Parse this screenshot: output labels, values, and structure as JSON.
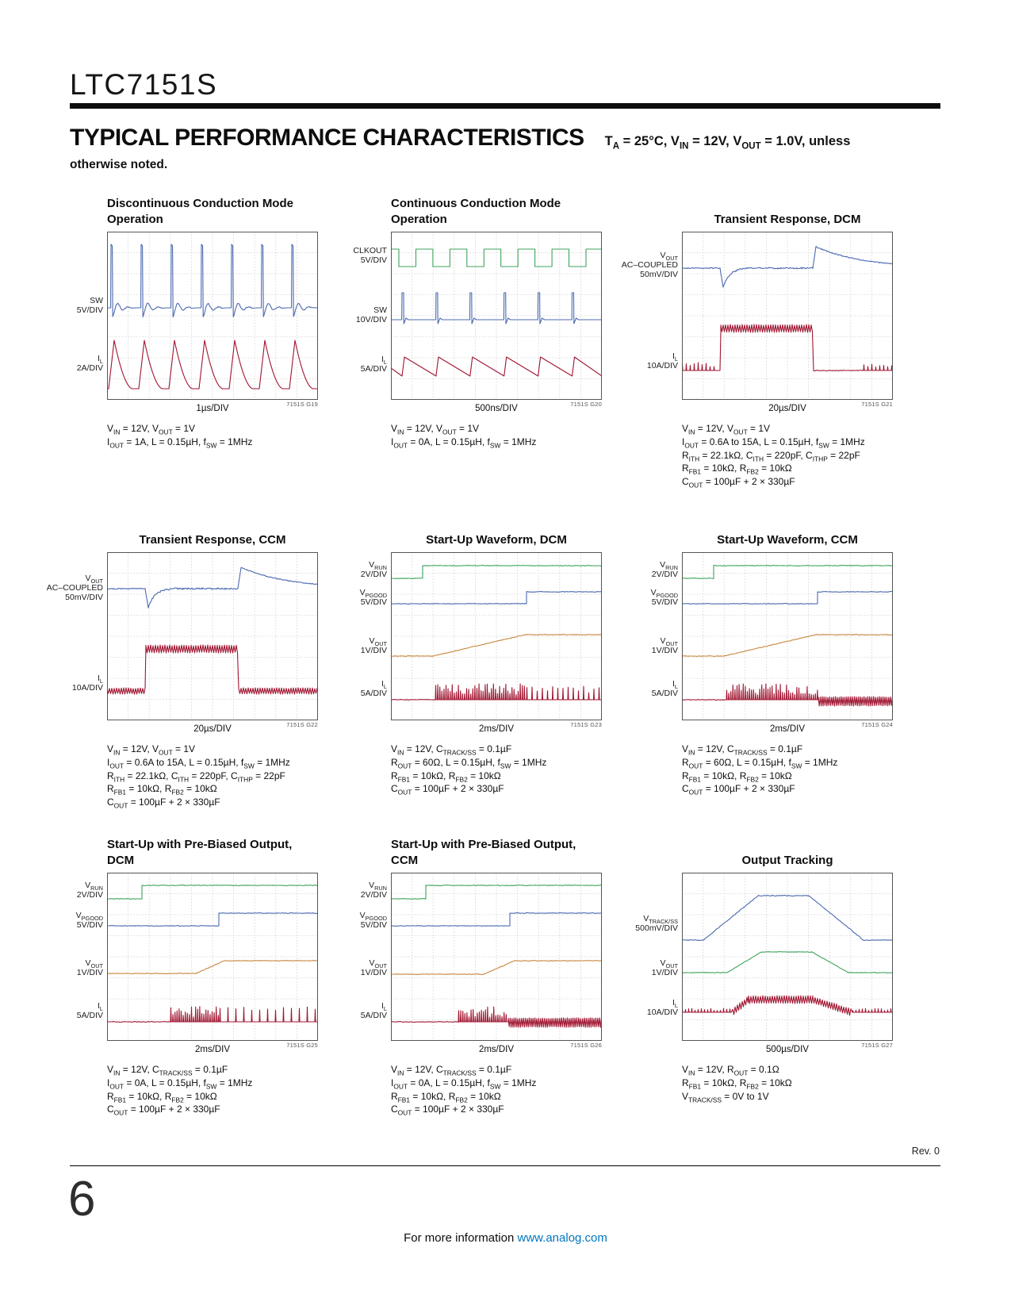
{
  "page": {
    "part_number": "LTC7151S",
    "section_title": "TYPICAL PERFORMANCE CHARACTERISTICS",
    "conditions_line1": "T~A~ = 25°C, V~IN~ = 12V, V~OUT~ = 1.0V, unless",
    "conditions_line2": "otherwise noted.",
    "rev": "Rev. 0",
    "page_number": "6",
    "footer_text": "For more information ",
    "footer_link": "www.analog.com"
  },
  "colors": {
    "blue": "#4b69b1",
    "red": "#a01531",
    "green": "#3fa35c",
    "orange": "#c8873d",
    "grid": "#cfcfcf",
    "frame": "#555555"
  },
  "panels": [
    {
      "id": "g19",
      "title_lines": [
        "Discontinuous Conduction Mode",
        "Operation"
      ],
      "tag": "7151S G19",
      "time_per_div": "1µs/DIV",
      "labels": [
        {
          "lines": [
            "SW",
            "5V/DIV"
          ]
        },
        {
          "lines": [
            "I~L~",
            "2A/DIV"
          ]
        }
      ],
      "signals": [
        {
          "name": "SW",
          "scale": "5V/DIV",
          "color": "blue",
          "shape": "switch-node pulses with DCM ringing"
        },
        {
          "name": "IL",
          "scale": "2A/DIV",
          "color": "red",
          "shape": "discontinuous triangular inductor current"
        }
      ],
      "notes": [
        "V~IN~ = 12V, V~OUT~ = 1V",
        "I~OUT~ = 1A, L = 0.15µH, f~SW~ = 1MHz"
      ]
    },
    {
      "id": "g20",
      "title_lines": [
        "Continuous Conduction Mode",
        "Operation"
      ],
      "tag": "7151S G20",
      "time_per_div": "500ns/DIV",
      "labels": [
        {
          "lines": [
            "CLKOUT",
            "5V/DIV"
          ]
        },
        {
          "lines": [
            "SW",
            "10V/DIV"
          ]
        },
        {
          "lines": [
            "I~L~",
            "5A/DIV"
          ]
        }
      ],
      "signals": [
        {
          "name": "CLKOUT",
          "scale": "5V/DIV",
          "color": "green",
          "shape": "square wave"
        },
        {
          "name": "SW",
          "scale": "10V/DIV",
          "color": "blue",
          "shape": "narrow switch-node pulses"
        },
        {
          "name": "IL",
          "scale": "5A/DIV",
          "color": "red",
          "shape": "continuous triangular ripple"
        }
      ],
      "notes": [
        "V~IN~ = 12V, V~OUT~ = 1V",
        "I~OUT~ = 0A, L = 0.15µH, f~SW~ = 1MHz"
      ]
    },
    {
      "id": "g21",
      "title_lines": [
        "Transient Response, DCM"
      ],
      "tag": "7151S G21",
      "time_per_div": "20µs/DIV",
      "labels": [
        {
          "lines": [
            "V~OUT~",
            "AC–COUPLED",
            "50mV/DIV"
          ]
        },
        {
          "lines": [
            "I~L~",
            "10A/DIV"
          ]
        }
      ],
      "signals": [
        {
          "name": "VOUT",
          "scale": "50mV/DIV AC-coupled",
          "color": "blue",
          "shape": "undershoot at load step, overshoot at release"
        },
        {
          "name": "IL",
          "scale": "10A/DIV",
          "color": "red",
          "shape": "0.6A DCM bursts stepping to 15A band"
        }
      ],
      "notes": [
        "V~IN~ = 12V, V~OUT~ = 1V",
        "I~OUT~ = 0.6A to 15A, L = 0.15µH, f~SW~ = 1MHz",
        "R~ITH~ = 22.1kΩ, C~ITH~ = 220pF, C~ITHP~ = 22pF",
        "R~FB1~ = 10kΩ, R~FB2~ = 10kΩ",
        "C~OUT~ = 100µF + 2 × 330µF"
      ]
    },
    {
      "id": "g22",
      "title_lines": [
        "Transient Response, CCM"
      ],
      "tag": "7151S G22",
      "time_per_div": "20µs/DIV",
      "labels": [
        {
          "lines": [
            "V~OUT~",
            "AC–COUPLED",
            "50mV/DIV"
          ]
        },
        {
          "lines": [
            "I~L~",
            "10A/DIV"
          ]
        }
      ],
      "signals": [
        {
          "name": "VOUT",
          "scale": "50mV/DIV AC-coupled",
          "color": "blue",
          "shape": "undershoot at load step, overshoot at release"
        },
        {
          "name": "IL",
          "scale": "10A/DIV",
          "color": "red",
          "shape": "continuous ripple band stepping 0.6A to 15A"
        }
      ],
      "notes": [
        "V~IN~ = 12V, V~OUT~ = 1V",
        "I~OUT~ = 0.6A to 15A, L = 0.15µH, f~SW~ = 1MHz",
        "R~ITH~ = 22.1kΩ, C~ITH~ = 220pF, C~ITHP~ = 22pF",
        "R~FB1~ = 10kΩ, R~FB2~ = 10kΩ",
        "C~OUT~ = 100µF + 2 × 330µF"
      ]
    },
    {
      "id": "g23",
      "title_lines": [
        "Start-Up Waveform, DCM"
      ],
      "tag": "7151S G23",
      "time_per_div": "2ms/DIV",
      "labels": [
        {
          "lines": [
            "V~RUN~",
            "2V/DIV"
          ]
        },
        {
          "lines": [
            "V~PGOOD~",
            "5V/DIV"
          ]
        },
        {
          "lines": [
            "V~OUT~",
            "1V/DIV"
          ]
        },
        {
          "lines": [
            "I~L~",
            "5A/DIV"
          ]
        }
      ],
      "signals": [
        {
          "name": "VRUN",
          "scale": "2V/DIV",
          "color": "green",
          "shape": "step high at enable"
        },
        {
          "name": "VPGOOD",
          "scale": "5V/DIV",
          "color": "blue",
          "shape": "steps high after regulation"
        },
        {
          "name": "VOUT",
          "scale": "1V/DIV",
          "color": "orange",
          "shape": "soft-start ramp to 1V"
        },
        {
          "name": "IL",
          "scale": "5A/DIV",
          "color": "red",
          "shape": "DCM current spikes during and after ramp"
        }
      ],
      "notes": [
        "V~IN~ = 12V, C~TRACK/SS~ = 0.1µF",
        "R~OUT~ = 60Ω, L = 0.15µH, f~SW~ = 1MHz",
        "R~FB1~ = 10kΩ, R~FB2~ = 10kΩ",
        "C~OUT~ = 100µF + 2 × 330µF"
      ]
    },
    {
      "id": "g24",
      "title_lines": [
        "Start-Up Waveform, CCM"
      ],
      "tag": "7151S G24",
      "time_per_div": "2ms/DIV",
      "labels": [
        {
          "lines": [
            "V~RUN~",
            "2V/DIV"
          ]
        },
        {
          "lines": [
            "V~PGOOD~",
            "5V/DIV"
          ]
        },
        {
          "lines": [
            "V~OUT~",
            "1V/DIV"
          ]
        },
        {
          "lines": [
            "I~L~",
            "5A/DIV"
          ]
        }
      ],
      "signals": [
        {
          "name": "VRUN",
          "scale": "2V/DIV",
          "color": "green",
          "shape": "step high at enable"
        },
        {
          "name": "VPGOOD",
          "scale": "5V/DIV",
          "color": "blue",
          "shape": "steps high after regulation"
        },
        {
          "name": "VOUT",
          "scale": "1V/DIV",
          "color": "orange",
          "shape": "soft-start ramp to 1V"
        },
        {
          "name": "IL",
          "scale": "5A/DIV",
          "color": "red",
          "shape": "spikes during ramp, continuous ripple band after"
        }
      ],
      "notes": [
        "V~IN~ = 12V, C~TRACK/SS~ = 0.1µF",
        "R~OUT~ = 60Ω, L = 0.15µH, f~SW~ = 1MHz",
        "R~FB1~ = 10kΩ, R~FB2~ = 10kΩ",
        "C~OUT~ = 100µF + 2 × 330µF"
      ]
    },
    {
      "id": "g25",
      "title_lines": [
        "Start-Up with Pre-Biased Output,",
        "DCM"
      ],
      "tag": "7151S G25",
      "time_per_div": "2ms/DIV",
      "labels": [
        {
          "lines": [
            "V~RUN~",
            "2V/DIV"
          ]
        },
        {
          "lines": [
            "V~PGOOD~",
            "5V/DIV"
          ]
        },
        {
          "lines": [
            "V~OUT~",
            "1V/DIV"
          ]
        },
        {
          "lines": [
            "I~L~",
            "5A/DIV"
          ]
        }
      ],
      "signals": [
        {
          "name": "VRUN",
          "scale": "2V/DIV",
          "color": "green",
          "shape": "step high at enable"
        },
        {
          "name": "VPGOOD",
          "scale": "5V/DIV",
          "color": "blue",
          "shape": "steps high after regulation"
        },
        {
          "name": "VOUT",
          "scale": "1V/DIV",
          "color": "orange",
          "shape": "pre-biased level then ramp to 1V"
        },
        {
          "name": "IL",
          "scale": "5A/DIV",
          "color": "red",
          "shape": "no current until SS catches up, then DCM spikes"
        }
      ],
      "notes": [
        "V~IN~ = 12V, C~TRACK/SS~ = 0.1µF",
        "I~OUT~ = 0A, L = 0.15µH, f~SW~ = 1MHz",
        "R~FB1~ = 10kΩ, R~FB2~ = 10kΩ",
        "C~OUT~ = 100µF + 2 × 330µF"
      ]
    },
    {
      "id": "g26",
      "title_lines": [
        "Start-Up with Pre-Biased Output,",
        "CCM"
      ],
      "tag": "7151S G26",
      "time_per_div": "2ms/DIV",
      "labels": [
        {
          "lines": [
            "V~RUN~",
            "2V/DIV"
          ]
        },
        {
          "lines": [
            "V~PGOOD~",
            "5V/DIV"
          ]
        },
        {
          "lines": [
            "V~OUT~",
            "1V/DIV"
          ]
        },
        {
          "lines": [
            "I~L~",
            "5A/DIV"
          ]
        }
      ],
      "signals": [
        {
          "name": "VRUN",
          "scale": "2V/DIV",
          "color": "green",
          "shape": "step high at enable"
        },
        {
          "name": "VPGOOD",
          "scale": "5V/DIV",
          "color": "blue",
          "shape": "steps high after regulation"
        },
        {
          "name": "VOUT",
          "scale": "1V/DIV",
          "color": "orange",
          "shape": "pre-biased level then ramp to 1V"
        },
        {
          "name": "IL",
          "scale": "5A/DIV",
          "color": "red",
          "shape": "burst during ramp then continuous ripple band"
        }
      ],
      "notes": [
        "V~IN~ = 12V, C~TRACK/SS~ = 0.1µF",
        "I~OUT~ = 0A, L = 0.15µH, f~SW~ = 1MHz",
        "R~FB1~ = 10kΩ, R~FB2~ = 10kΩ",
        "C~OUT~ = 100µF + 2 × 330µF"
      ]
    },
    {
      "id": "g27",
      "title_lines": [
        "Output Tracking"
      ],
      "tag": "7151S G27",
      "time_per_div": "500µs/DIV",
      "labels": [
        {
          "lines": [
            "V~TRACK/SS~",
            "500mV/DIV"
          ]
        },
        {
          "lines": [
            "V~OUT~",
            "1V/DIV"
          ]
        },
        {
          "lines": [
            "I~L~",
            "10A/DIV"
          ]
        }
      ],
      "signals": [
        {
          "name": "VTRACK/SS",
          "scale": "500mV/DIV",
          "color": "blue",
          "shape": "trapezoid 0V to 1V and back"
        },
        {
          "name": "VOUT",
          "scale": "1V/DIV",
          "color": "green",
          "shape": "output tracks TRACK/SS ramp"
        },
        {
          "name": "IL",
          "scale": "10A/DIV",
          "color": "red",
          "shape": "load current band follows output trapezoid"
        }
      ],
      "notes": [
        "V~IN~ = 12V, R~OUT~ = 0.1Ω",
        "R~FB1~ = 10kΩ, R~FB2~ = 10kΩ",
        "V~TRACK/SS~ = 0V to 1V"
      ]
    }
  ]
}
